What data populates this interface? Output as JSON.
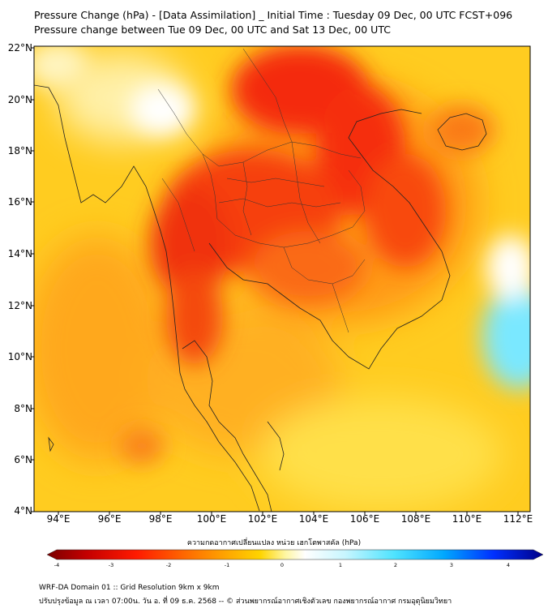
{
  "title_line1": "Pressure Change (hPa) - [Data Assimilation] _ Initial Time : Tuesday 09 Dec, 00 UTC FCST+096",
  "title_line2": "Pressure change between Tue 09 Dec, 00 UTC and Sat 13 Dec, 00 UTC",
  "lat_labels": [
    "22°N",
    "20°N",
    "18°N",
    "16°N",
    "14°N",
    "12°N",
    "10°N",
    "8°N",
    "6°N",
    "4°N"
  ],
  "lon_labels": [
    "94°E",
    "96°E",
    "98°E",
    "100°E",
    "102°E",
    "104°E",
    "106°E",
    "108°E",
    "110°E",
    "112°E"
  ],
  "colorbar": {
    "title": "ความกดอากาศเปลี่ยนแปลง หน่วย เฮกโตพาสคัล (hPa)",
    "ticks": [
      "-4",
      "-3",
      "-2",
      "-1",
      "0",
      "1",
      "2",
      "3",
      "4"
    ],
    "range": [
      -4,
      4
    ],
    "colors": [
      "#7a0000",
      "#c40000",
      "#ff1a00",
      "#ff6a00",
      "#ffa500",
      "#ffd400",
      "#fff6a0",
      "#ffffff",
      "#c8f6ff",
      "#4fe3ff",
      "#00a8ff",
      "#0030ff",
      "#000088"
    ]
  },
  "footer_line1": "WRF-DA Domain 01 :: Grid Resolution 9km x 9km",
  "footer_line2": "ปรับปรุงข้อมูล ณ เวลา 07:00น. วัน อ. ที่ 09 ธ.ค. 2568 -- © ส่วนพยากรณ์อากาศเชิงตัวเลข กองพยากรณ์อากาศ กรมอุตุนิยมวิทยา"
}
